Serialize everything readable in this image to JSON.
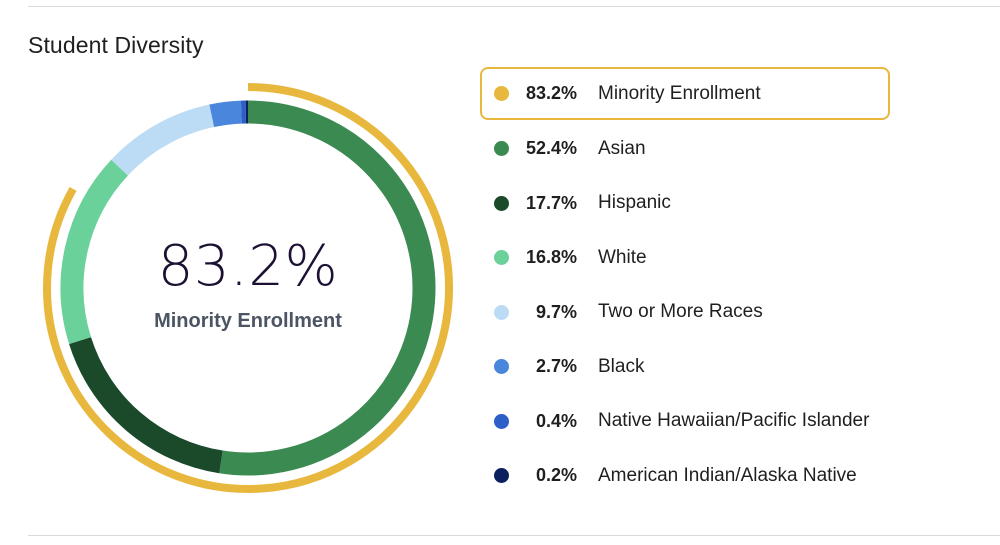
{
  "section_title": "Student Diversity",
  "center": {
    "value": "83.2%",
    "label": "Minority Enrollment"
  },
  "colors": {
    "highlight": "#e8b83e",
    "asian": "#3b8a52",
    "hispanic": "#1b4a2b",
    "white": "#6bd19a",
    "two_or_more": "#bcdcf6",
    "black": "#4a86db",
    "nhpi": "#2d5fc9",
    "aian": "#0c2060"
  },
  "chart_data": {
    "type": "pie",
    "title": "Student Diversity",
    "center_value": 83.2,
    "summary": {
      "name": "Minority Enrollment",
      "value": 83.2,
      "display": "83.2%",
      "color": "#e8b83e"
    },
    "series": [
      {
        "name": "Asian",
        "value": 52.4,
        "display": "52.4%",
        "color": "#3b8a52"
      },
      {
        "name": "Hispanic",
        "value": 17.7,
        "display": "17.7%",
        "color": "#1b4a2b"
      },
      {
        "name": "White",
        "value": 16.8,
        "display": "16.8%",
        "color": "#6bd19a"
      },
      {
        "name": "Two or More Races",
        "value": 9.7,
        "display": "9.7%",
        "color": "#bcdcf6"
      },
      {
        "name": "Black",
        "value": 2.7,
        "display": "2.7%",
        "color": "#4a86db"
      },
      {
        "name": "Native Hawaiian/Pacific Islander",
        "value": 0.4,
        "display": "0.4%",
        "color": "#2d5fc9"
      },
      {
        "name": "American Indian/Alaska Native",
        "value": 0.2,
        "display": "0.2%",
        "color": "#0c2060"
      }
    ]
  }
}
